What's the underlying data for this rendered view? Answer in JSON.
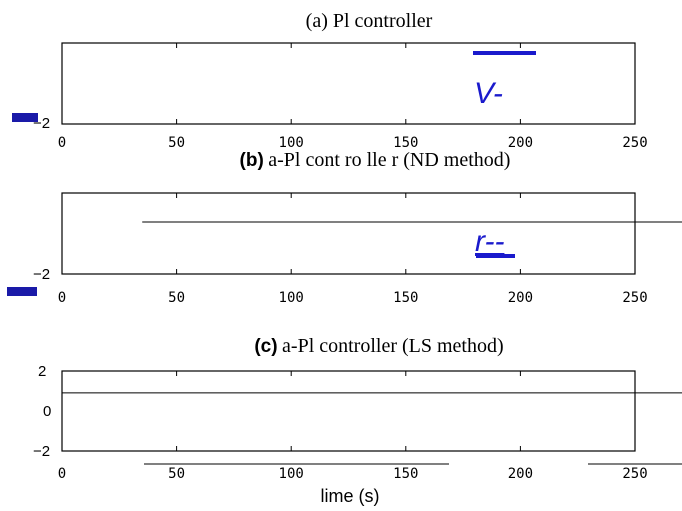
{
  "colors": {
    "legend": "#1a1acc",
    "axis": "#000000",
    "bar": "#1a1aa8"
  },
  "chart_data": [
    {
      "type": "line",
      "panel_label": "(a)",
      "title": "Pl controller",
      "xlim": [
        0,
        250
      ],
      "x_ticks": [
        "0",
        "50",
        "100",
        "150",
        "200",
        "250"
      ],
      "y_ticks": [
        "−2"
      ],
      "legend": "V-",
      "series": []
    },
    {
      "type": "line",
      "panel_label": "(b)",
      "title": "a-Pl cont ro lle r (ND method)",
      "xlim": [
        0,
        250
      ],
      "x_ticks": [
        "0",
        "50",
        "100",
        "150",
        "200",
        "250"
      ],
      "y_ticks": [
        "−2"
      ],
      "legend": "r--",
      "series": [
        {
          "x": [
            35,
            250
          ],
          "y": [
            1.2,
            1.2
          ]
        }
      ]
    },
    {
      "type": "line",
      "panel_label": "(c)",
      "title": "a-Pl controller (LS method)",
      "xlim": [
        0,
        250
      ],
      "ylim": [
        -2,
        2
      ],
      "x_ticks": [
        "0",
        "50",
        "100",
        "150",
        "200",
        "250"
      ],
      "y_ticks": [
        "2",
        "0",
        "−2"
      ],
      "xlabel": "lime (s)",
      "series": [
        {
          "x": [
            0,
            250
          ],
          "y": [
            1,
            1
          ]
        }
      ]
    }
  ]
}
